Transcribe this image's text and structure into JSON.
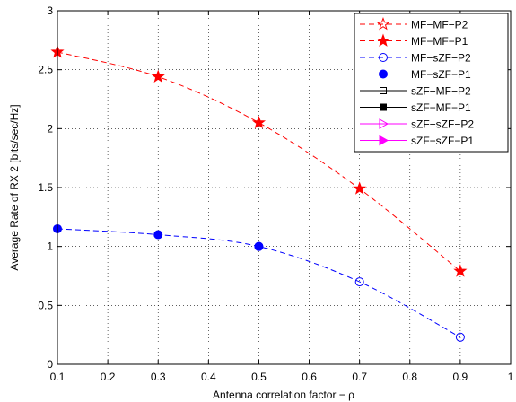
{
  "chart_data": {
    "type": "line",
    "xlabel": "Antenna correlation factor − ρ",
    "ylabel": "Average Rate of RX 2 [bits/sec/Hz]",
    "xlim": [
      0.1,
      1
    ],
    "ylim": [
      0,
      3
    ],
    "xticks": [
      "0.1",
      "0.2",
      "0.3",
      "0.4",
      "0.5",
      "0.6",
      "0.7",
      "0.8",
      "0.9",
      "1"
    ],
    "xtick_values": [
      0.1,
      0.2,
      0.3,
      0.4,
      0.5,
      0.6,
      0.7,
      0.8,
      0.9,
      1.0
    ],
    "yticks": [
      "0",
      "0.5",
      "1",
      "1.5",
      "2",
      "2.5",
      "3"
    ],
    "ytick_values": [
      0,
      0.5,
      1,
      1.5,
      2,
      2.5,
      3
    ],
    "grid": true,
    "legend_position": "top-right",
    "series": [
      {
        "name": "MF−MF−P2",
        "color": "#ff0000",
        "marker": "star-open",
        "dash": true,
        "x": [],
        "y": []
      },
      {
        "name": "MF−MF−P1",
        "color": "#ff0000",
        "marker": "star-filled",
        "dash": true,
        "x": [
          0.1,
          0.3,
          0.5,
          0.7,
          0.9
        ],
        "y": [
          2.65,
          2.44,
          2.05,
          1.49,
          0.79
        ]
      },
      {
        "name": "MF−sZF−P2",
        "color": "#0000ff",
        "marker": "circle-open",
        "dash": true,
        "x": [
          0.5,
          0.7,
          0.9
        ],
        "y": [
          1.0,
          0.7,
          0.23
        ]
      },
      {
        "name": "MF−sZF−P1",
        "color": "#0000ff",
        "marker": "circle-filled",
        "dash": true,
        "x": [
          0.1,
          0.3,
          0.5
        ],
        "y": [
          1.15,
          1.1,
          1.0
        ]
      },
      {
        "name": "sZF−MF−P2",
        "color": "#000000",
        "marker": "square-open",
        "dash": false,
        "x": [],
        "y": []
      },
      {
        "name": "sZF−MF−P1",
        "color": "#000000",
        "marker": "square-filled",
        "dash": false,
        "x": [],
        "y": []
      },
      {
        "name": "sZF−sZF−P2",
        "color": "#ff00ff",
        "marker": "triangle-open",
        "dash": false,
        "x": [],
        "y": []
      },
      {
        "name": "sZF−sZF−P1",
        "color": "#ff00ff",
        "marker": "triangle-filled",
        "dash": false,
        "x": [],
        "y": []
      }
    ],
    "curve": {
      "MF−MF": {
        "color": "#ff0000",
        "x": [
          0.1,
          0.3,
          0.5,
          0.7,
          0.9
        ],
        "y": [
          2.65,
          2.44,
          2.05,
          1.49,
          0.79
        ]
      },
      "MF−sZF": {
        "color": "#0000ff",
        "x": [
          0.1,
          0.3,
          0.5,
          0.7,
          0.9
        ],
        "y": [
          1.15,
          1.1,
          1.0,
          0.7,
          0.23
        ]
      }
    }
  }
}
